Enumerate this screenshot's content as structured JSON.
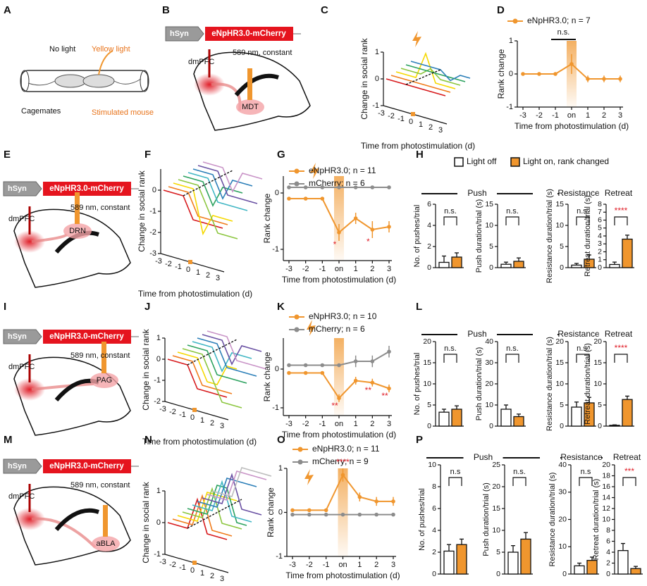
{
  "panel_letters": [
    "A",
    "B",
    "C",
    "D",
    "E",
    "F",
    "G",
    "H",
    "I",
    "J",
    "K",
    "L",
    "M",
    "N",
    "O",
    "P"
  ],
  "schematic_A": {
    "top_left": "No light",
    "top_right": "Yellow light",
    "bottom_left": "Cagemates",
    "bottom_right": "Stimulated mouse"
  },
  "constructs": [
    {
      "promoter": "hSyn",
      "opsin": "eNpHR3.0-mCherry",
      "light": "589 nm, constant",
      "source": "dmPFC",
      "target": "MDT"
    },
    {
      "promoter": "hSyn",
      "opsin": "eNpHR3.0-mCherry",
      "light": "589 nm, constant",
      "source": "dmPFC",
      "target": "DRN"
    },
    {
      "promoter": "hSyn",
      "opsin": "eNpHR3.0-mCherry",
      "light": "589 nm, constant",
      "source": "dmPFC",
      "target": "PAG"
    },
    {
      "promoter": "hSyn",
      "opsin": "eNpHR3.0-mCherry",
      "light": "589 nm, constant",
      "source": "dmPFC",
      "target": "aBLA"
    }
  ],
  "chart_data": [
    {
      "type": "waterfall",
      "y_label": "Change in social rank",
      "x_label": "Time from photostimulation (d)",
      "categories": [
        "-3",
        "-2",
        "-1",
        "0",
        "1",
        "2",
        "3"
      ],
      "ylim": [
        -1,
        1
      ],
      "yticks": [
        -1,
        0,
        1
      ],
      "series": [
        {
          "color": "#d7191c",
          "values": [
            0,
            0,
            0,
            0,
            0,
            0,
            0
          ]
        },
        {
          "color": "#f07c1c",
          "values": [
            0,
            0,
            0,
            0,
            0,
            0,
            0
          ]
        },
        {
          "color": "#f5d800",
          "values": [
            0,
            0,
            0,
            1,
            0,
            0,
            0
          ]
        },
        {
          "color": "#8cc63f",
          "values": [
            0,
            0,
            0,
            0.3,
            0,
            0,
            0
          ]
        },
        {
          "color": "#2ca25f",
          "values": [
            0,
            0,
            0,
            0,
            0,
            0,
            0
          ]
        },
        {
          "color": "#2c7fb8",
          "values": [
            0,
            0,
            0,
            0,
            -0.3,
            0,
            0
          ]
        }
      ]
    },
    {
      "type": "line",
      "y_label": "Rank change",
      "x_label": "Time from photostimulation (d)",
      "categories": [
        "-3",
        "-2",
        "-1",
        "on",
        "1",
        "2",
        "3"
      ],
      "ylim": [
        -1,
        1
      ],
      "yticks": [
        -1,
        0,
        1
      ],
      "series": [
        {
          "name": "eNpHR3.0; n = 7",
          "color": "#f0962e",
          "values": [
            0,
            0,
            0,
            0.3,
            -0.15,
            -0.15,
            -0.15
          ],
          "errors": [
            0,
            0,
            0,
            0.3,
            0.1,
            0.1,
            0.1
          ]
        }
      ],
      "bracket": {
        "text": "n.s.",
        "from": 2,
        "to": 3
      }
    },
    {
      "type": "waterfall",
      "y_label": "Change in social rank",
      "x_label": "Time from photostimulation (d)",
      "categories": [
        "-3",
        "-2",
        "-1",
        "0",
        "1",
        "2",
        "3"
      ],
      "ylim": [
        -3,
        1
      ],
      "yticks": [
        -3,
        -2,
        -1,
        0
      ],
      "series": [
        {
          "color": "#d7191c",
          "values": [
            0,
            0,
            0,
            -1,
            -1,
            -1,
            -1
          ]
        },
        {
          "color": "#f07c1c",
          "values": [
            0,
            0,
            0,
            -1,
            -1,
            -1,
            -1
          ]
        },
        {
          "color": "#f5d800",
          "values": [
            0,
            0,
            0,
            -2,
            -1,
            -1,
            -1
          ]
        },
        {
          "color": "#8cc63f",
          "values": [
            0,
            0,
            0,
            -1,
            -2,
            -2,
            -2
          ]
        },
        {
          "color": "#2ca25f",
          "values": [
            0,
            0,
            0,
            -1,
            0,
            0,
            0
          ]
        },
        {
          "color": "#41b6c4",
          "values": [
            0,
            0,
            0,
            -1,
            -1,
            -1,
            -1
          ]
        },
        {
          "color": "#2c7fb8",
          "values": [
            0,
            0,
            0,
            -1,
            0,
            0,
            0
          ]
        },
        {
          "color": "#6a51a3",
          "values": [
            0,
            0,
            0,
            -1,
            -1,
            -1,
            -1
          ]
        },
        {
          "color": "#c994c7",
          "values": [
            0,
            0,
            0,
            -1,
            0,
            0,
            0
          ]
        }
      ]
    },
    {
      "type": "line",
      "y_label": "Rank change",
      "x_label": "Time from photostimulation (d)",
      "categories": [
        "-3",
        "-2",
        "-1",
        "on",
        "1",
        "2",
        "3"
      ],
      "ylim": [
        -1.2,
        0.3
      ],
      "yticks": [
        -1,
        0
      ],
      "series": [
        {
          "name": "eNpHR3.0; n = 11",
          "color": "#f0962e",
          "values": [
            -0.1,
            -0.1,
            -0.1,
            -0.7,
            -0.45,
            -0.65,
            -0.6
          ],
          "errors": [
            0,
            0,
            0,
            0.15,
            0.1,
            0.15,
            0.1
          ]
        },
        {
          "name": "mCherry; n = 6",
          "color": "#8c8c8c",
          "values": [
            0.1,
            0.1,
            0.1,
            0.1,
            0.1,
            0.1,
            0.1
          ],
          "errors": [
            0,
            0,
            0,
            0,
            0,
            0,
            0
          ]
        }
      ],
      "annotations": [
        {
          "text": "*",
          "index": 3
        },
        {
          "text": "*",
          "index": 5
        }
      ]
    },
    {
      "type": "bar_panels",
      "legend": [
        "Light off",
        "Light on, rank changed"
      ],
      "colors": [
        "#ffffff",
        "#f0962e"
      ],
      "group_labels": [
        "Push",
        "Resistance",
        "Retreat"
      ],
      "panels": [
        {
          "y_label": "No. of pushes/trial",
          "ylim": [
            0,
            6
          ],
          "yticks": [
            0,
            2,
            4,
            6
          ],
          "values": [
            0.5,
            1.0
          ],
          "errors": [
            0.6,
            0.4
          ],
          "significance": "n.s."
        },
        {
          "y_label": "Push duration/trial (s)",
          "ylim": [
            0,
            15
          ],
          "yticks": [
            0,
            5,
            10,
            15
          ],
          "values": [
            0.8,
            1.5
          ],
          "errors": [
            0.5,
            0.8
          ],
          "significance": "n.s."
        },
        {
          "y_label": "Resistance duration/trial (s)",
          "ylim": [
            0,
            15
          ],
          "yticks": [
            0,
            5,
            10,
            15
          ],
          "values": [
            0.6,
            2.0
          ],
          "errors": [
            0.4,
            1.0
          ],
          "significance": "n.s."
        },
        {
          "y_label": "Retreat duration/trial (s)",
          "ylim": [
            0,
            8
          ],
          "yticks": [
            0,
            1,
            2,
            3,
            4,
            5,
            6,
            7,
            8
          ],
          "values": [
            0.4,
            3.6
          ],
          "errors": [
            0.3,
            0.5
          ],
          "significance": "****"
        }
      ]
    },
    {
      "type": "waterfall",
      "y_label": "Change in social rank",
      "x_label": "Time from photostimulation (d)",
      "categories": [
        "-3",
        "-2",
        "-1",
        "0",
        "1",
        "2",
        "3"
      ],
      "ylim": [
        -2,
        1
      ],
      "yticks": [
        -2,
        -1,
        0,
        1
      ],
      "series": [
        {
          "color": "#d7191c",
          "values": [
            0,
            0,
            0,
            -1,
            -1,
            -1,
            -1
          ]
        },
        {
          "color": "#f07c1c",
          "values": [
            0,
            0,
            0,
            -1,
            -1,
            -1,
            -1
          ]
        },
        {
          "color": "#f5d800",
          "values": [
            0,
            0,
            0,
            -1,
            -1,
            0,
            0
          ]
        },
        {
          "color": "#8cc63f",
          "values": [
            0,
            0,
            0,
            -1,
            -2,
            -2,
            -2
          ]
        },
        {
          "color": "#2ca25f",
          "values": [
            0,
            0,
            0,
            -1,
            -1,
            -1,
            -1
          ]
        },
        {
          "color": "#41b6c4",
          "values": [
            0,
            0,
            0,
            -1,
            0,
            0,
            0
          ]
        },
        {
          "color": "#2c7fb8",
          "values": [
            0,
            0,
            0,
            -1,
            -1,
            -1,
            -1
          ]
        },
        {
          "color": "#6a51a3",
          "values": [
            0,
            0,
            0,
            -1,
            0,
            0,
            0
          ]
        },
        {
          "color": "#c994c7",
          "values": [
            0,
            0,
            0,
            -1,
            -1,
            -1,
            -1
          ]
        }
      ]
    },
    {
      "type": "line",
      "y_label": "Rank change",
      "x_label": "Time from photostimulation (d)",
      "categories": [
        "-3",
        "-2",
        "-1",
        "on",
        "1",
        "2",
        "3"
      ],
      "ylim": [
        -1.2,
        0.8
      ],
      "yticks": [
        -1,
        0
      ],
      "series": [
        {
          "name": "eNpHR3.0; n = 10",
          "color": "#f0962e",
          "values": [
            -0.1,
            -0.1,
            -0.1,
            -0.75,
            -0.3,
            -0.35,
            -0.5
          ],
          "errors": [
            0,
            0,
            0,
            0.1,
            0.1,
            0.1,
            0.1
          ]
        },
        {
          "name": "mCherry; n = 6",
          "color": "#8c8c8c",
          "values": [
            0.1,
            0.1,
            0.1,
            0.1,
            0.2,
            0.2,
            0.45
          ],
          "errors": [
            0,
            0,
            0,
            0,
            0.15,
            0.15,
            0.15
          ]
        }
      ],
      "annotations": [
        {
          "text": "**",
          "index": 3
        },
        {
          "text": "**",
          "index": 5
        },
        {
          "text": "**",
          "index": 6
        }
      ]
    },
    {
      "type": "bar_panels",
      "colors": [
        "#ffffff",
        "#f0962e"
      ],
      "group_labels": [
        "Push",
        "Resistance",
        "Retreat"
      ],
      "panels": [
        {
          "y_label": "No. of pushes/trial",
          "ylim": [
            0,
            20
          ],
          "yticks": [
            0,
            5,
            10,
            15,
            20
          ],
          "values": [
            3.3,
            4.0
          ],
          "errors": [
            0.7,
            0.8
          ],
          "significance": "n.s."
        },
        {
          "y_label": "Push duration/trial (s)",
          "ylim": [
            0,
            40
          ],
          "yticks": [
            0,
            10,
            20,
            30,
            40
          ],
          "values": [
            8,
            4.5
          ],
          "errors": [
            2,
            1.2
          ],
          "significance": "n.s."
        },
        {
          "y_label": "Resistance duration/trial (s)",
          "ylim": [
            0,
            20
          ],
          "yticks": [
            0,
            5,
            10,
            15,
            20
          ],
          "values": [
            4.5,
            5.5
          ],
          "errors": [
            1.2,
            1.3
          ],
          "significance": "n.s."
        },
        {
          "y_label": "Retreat duration/trial (s)",
          "ylim": [
            0,
            20
          ],
          "yticks": [
            0,
            5,
            10,
            15,
            20
          ],
          "values": [
            0.2,
            6.3
          ],
          "errors": [
            0.1,
            0.8
          ],
          "significance": "****"
        }
      ]
    },
    {
      "type": "waterfall",
      "y_label": "Change in social rank",
      "x_label": "Time from photostimulation (d)",
      "categories": [
        "-3",
        "-2",
        "-1",
        "0",
        "1",
        "2",
        "3"
      ],
      "ylim": [
        -1,
        1
      ],
      "yticks": [
        -1,
        0,
        1
      ],
      "series": [
        {
          "color": "#d7191c",
          "values": [
            0,
            0,
            0,
            1,
            0,
            0,
            0
          ]
        },
        {
          "color": "#f07c1c",
          "values": [
            0,
            0,
            0,
            1,
            0,
            0,
            0
          ]
        },
        {
          "color": "#f5d800",
          "values": [
            0,
            0,
            0,
            1,
            1,
            1,
            1
          ]
        },
        {
          "color": "#8cc63f",
          "values": [
            0,
            0,
            0,
            1,
            0,
            0,
            0
          ]
        },
        {
          "color": "#2ca25f",
          "values": [
            0,
            0,
            0,
            1,
            1,
            0,
            0
          ]
        },
        {
          "color": "#41b6c4",
          "values": [
            0,
            0,
            0,
            1,
            0,
            0,
            0
          ]
        },
        {
          "color": "#2c7fb8",
          "values": [
            0,
            0,
            0,
            1,
            1,
            1,
            1
          ]
        },
        {
          "color": "#6a51a3",
          "values": [
            0,
            0,
            0,
            1,
            0,
            0,
            0
          ]
        },
        {
          "color": "#c994c7",
          "values": [
            0,
            0,
            0,
            1,
            1,
            1,
            1
          ]
        },
        {
          "color": "#bdbdbd",
          "values": [
            0,
            0,
            0,
            1,
            1,
            1,
            1
          ]
        }
      ]
    },
    {
      "type": "line",
      "y_label": "Rank change",
      "x_label": "Time from photostimulation (d)",
      "categories": [
        "-3",
        "-2",
        "-1",
        "on",
        "1",
        "2",
        "3"
      ],
      "ylim": [
        -1,
        1
      ],
      "yticks": [
        -1,
        0,
        1
      ],
      "series": [
        {
          "name": "eNpHR3.0; n = 11",
          "color": "#f0962e",
          "values": [
            0.05,
            0.05,
            0.05,
            0.85,
            0.35,
            0.25,
            0.25
          ],
          "errors": [
            0,
            0,
            0,
            0.15,
            0.1,
            0.1,
            0.1
          ]
        },
        {
          "name": "mCherry; n = 9",
          "color": "#8c8c8c",
          "values": [
            -0.05,
            -0.05,
            -0.05,
            -0.05,
            -0.05,
            -0.05,
            -0.05
          ],
          "errors": [
            0,
            0,
            0,
            0,
            0,
            0,
            0
          ]
        }
      ],
      "annotations": [
        {
          "text": "****",
          "index": 3
        }
      ]
    },
    {
      "type": "bar_panels",
      "colors": [
        "#ffffff",
        "#f0962e"
      ],
      "group_labels": [
        "Push",
        "Resistance",
        "Retreat"
      ],
      "panels": [
        {
          "y_label": "No. of pushes/trial",
          "ylim": [
            0,
            10
          ],
          "yticks": [
            0,
            2,
            4,
            6,
            8,
            10
          ],
          "values": [
            2.1,
            2.7
          ],
          "errors": [
            0.6,
            0.5
          ],
          "significance": "n.s"
        },
        {
          "y_label": "Push duration/trial (s)",
          "ylim": [
            0,
            25
          ],
          "yticks": [
            0,
            5,
            10,
            15,
            20,
            25
          ],
          "values": [
            5,
            8
          ],
          "errors": [
            1.5,
            1.5
          ],
          "significance": "n.s."
        },
        {
          "y_label": "Resistance duration/trial (s)",
          "ylim": [
            0,
            40
          ],
          "yticks": [
            0,
            10,
            20,
            30,
            40
          ],
          "values": [
            3,
            5
          ],
          "errors": [
            1,
            1.2
          ],
          "significance": "n.s"
        },
        {
          "y_label": "Retreat duration/trial (s)",
          "ylim": [
            0,
            20
          ],
          "yticks": [
            0,
            2,
            4,
            6,
            8,
            10,
            12,
            14,
            16,
            18,
            20
          ],
          "values": [
            4.3,
            1.0
          ],
          "errors": [
            1.3,
            0.4
          ],
          "significance": "***"
        }
      ]
    }
  ]
}
